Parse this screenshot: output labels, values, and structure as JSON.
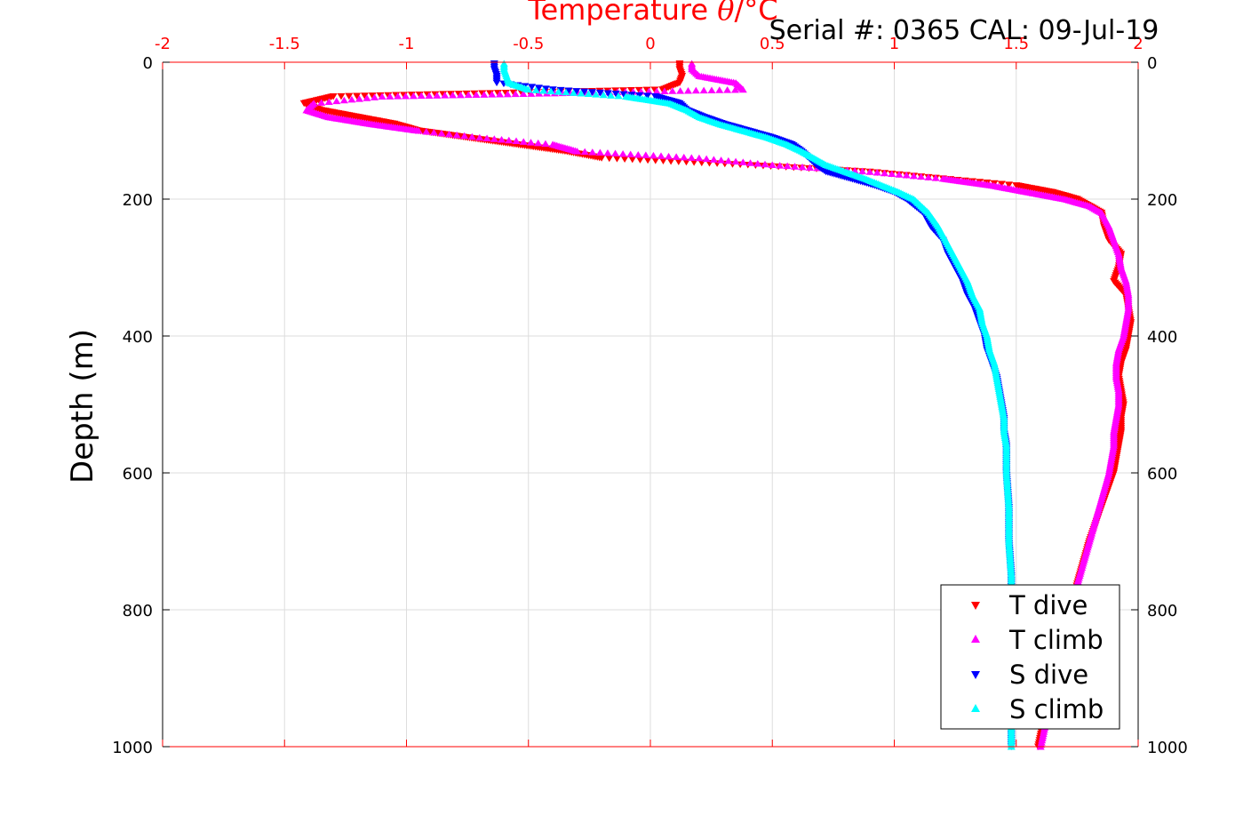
{
  "header": {
    "title_prefix": "Temperature ",
    "title_symbol": "θ",
    "title_suffix": "/°C",
    "serial": "Serial #: 0365  CAL: 09-Jul-19"
  },
  "colors": {
    "t_dive": "#ff0000",
    "t_climb": "#ff00ff",
    "s_dive": "#0000ff",
    "s_climb": "#00ffff",
    "axis_top": "#ff0000",
    "grid": "#dddddd"
  },
  "chart_data": {
    "type": "scatter",
    "ylabel": "Depth (m)",
    "xlim": [
      -2,
      2
    ],
    "ylim": [
      0,
      1000
    ],
    "y_reversed": true,
    "grid": true,
    "legend_position": "bottom-right",
    "x_ticks": [
      "-2",
      "-1.5",
      "-1",
      "-0.5",
      "0",
      "0.5",
      "1",
      "1.5",
      "2"
    ],
    "y_ticks": [
      "0",
      "200",
      "400",
      "600",
      "800",
      "1000"
    ],
    "series": [
      {
        "name": "T dive",
        "marker": "triangle-down",
        "color": "#ff0000",
        "depth": [
          2,
          10,
          20,
          30,
          40,
          50,
          60,
          70,
          80,
          90,
          100,
          110,
          120,
          130,
          140,
          150,
          160,
          170,
          180,
          190,
          200,
          210,
          220,
          240,
          260,
          280,
          300,
          320,
          340,
          360,
          380,
          400,
          420,
          440,
          460,
          480,
          500,
          520,
          540,
          560,
          600,
          650,
          700,
          750,
          800,
          850,
          900,
          950,
          1000
        ],
        "temp": [
          0.12,
          0.12,
          0.13,
          0.12,
          0.05,
          -1.3,
          -1.42,
          -1.35,
          -1.2,
          -1.05,
          -0.95,
          -0.75,
          -0.55,
          -0.35,
          -0.2,
          0.4,
          0.9,
          1.2,
          1.5,
          1.65,
          1.75,
          1.8,
          1.85,
          1.86,
          1.88,
          1.93,
          1.92,
          1.9,
          1.95,
          1.96,
          1.97,
          1.96,
          1.95,
          1.93,
          1.92,
          1.93,
          1.94,
          1.93,
          1.93,
          1.92,
          1.9,
          1.85,
          1.8,
          1.76,
          1.72,
          1.68,
          1.65,
          1.62,
          1.59
        ]
      },
      {
        "name": "T climb",
        "marker": "triangle-up",
        "color": "#ff00ff",
        "depth": [
          2,
          10,
          20,
          30,
          40,
          50,
          60,
          70,
          80,
          90,
          100,
          110,
          120,
          130,
          140,
          150,
          160,
          170,
          180,
          190,
          200,
          210,
          220,
          240,
          260,
          280,
          300,
          320,
          340,
          360,
          380,
          400,
          420,
          440,
          460,
          480,
          500,
          520,
          540,
          560,
          600,
          650,
          700,
          750,
          800,
          850,
          900,
          950,
          1000
        ],
        "temp": [
          0.17,
          0.17,
          0.2,
          0.35,
          0.38,
          -1.1,
          -1.38,
          -1.41,
          -1.32,
          -1.15,
          -0.95,
          -0.7,
          -0.4,
          -0.3,
          0.2,
          0.5,
          0.9,
          1.2,
          1.4,
          1.55,
          1.7,
          1.8,
          1.85,
          1.88,
          1.9,
          1.92,
          1.93,
          1.95,
          1.96,
          1.96,
          1.95,
          1.94,
          1.92,
          1.91,
          1.91,
          1.92,
          1.92,
          1.91,
          1.9,
          1.9,
          1.88,
          1.84,
          1.8,
          1.76,
          1.72,
          1.69,
          1.66,
          1.63,
          1.6
        ]
      },
      {
        "name": "S dive",
        "marker": "triangle-down",
        "color": "#0000ff",
        "depth": [
          2,
          10,
          20,
          30,
          40,
          50,
          60,
          70,
          80,
          90,
          100,
          110,
          120,
          130,
          140,
          150,
          160,
          170,
          180,
          190,
          200,
          220,
          240,
          260,
          280,
          300,
          320,
          340,
          360,
          380,
          400,
          420,
          440,
          460,
          480,
          500,
          520,
          540,
          560,
          600,
          650,
          700,
          750,
          800,
          850,
          900,
          950,
          1000
        ],
        "temp": [
          -0.64,
          -0.64,
          -0.63,
          -0.63,
          -0.4,
          0.02,
          0.12,
          0.15,
          0.22,
          0.3,
          0.4,
          0.5,
          0.58,
          0.62,
          0.65,
          0.68,
          0.72,
          0.82,
          0.92,
          1.0,
          1.05,
          1.12,
          1.15,
          1.2,
          1.22,
          1.25,
          1.28,
          1.3,
          1.33,
          1.35,
          1.37,
          1.38,
          1.4,
          1.42,
          1.43,
          1.44,
          1.45,
          1.45,
          1.46,
          1.46,
          1.47,
          1.47,
          1.48,
          1.48,
          1.48,
          1.48,
          1.48,
          1.48
        ]
      },
      {
        "name": "S climb",
        "marker": "triangle-up",
        "color": "#00ffff",
        "depth": [
          2,
          10,
          20,
          30,
          40,
          50,
          60,
          70,
          80,
          90,
          100,
          110,
          120,
          130,
          140,
          150,
          160,
          170,
          180,
          190,
          200,
          220,
          240,
          260,
          280,
          300,
          320,
          340,
          360,
          380,
          400,
          420,
          440,
          460,
          480,
          500,
          520,
          540,
          560,
          600,
          650,
          700,
          750,
          800,
          850,
          900,
          950,
          1000
        ],
        "temp": [
          -0.6,
          -0.6,
          -0.59,
          -0.58,
          -0.5,
          -0.1,
          0.08,
          0.15,
          0.2,
          0.28,
          0.38,
          0.48,
          0.56,
          0.62,
          0.67,
          0.72,
          0.8,
          0.88,
          0.95,
          1.02,
          1.08,
          1.14,
          1.18,
          1.21,
          1.24,
          1.27,
          1.3,
          1.32,
          1.35,
          1.36,
          1.38,
          1.39,
          1.41,
          1.42,
          1.43,
          1.44,
          1.45,
          1.45,
          1.46,
          1.46,
          1.47,
          1.47,
          1.48,
          1.48,
          1.48,
          1.48,
          1.48,
          1.48
        ]
      }
    ]
  }
}
